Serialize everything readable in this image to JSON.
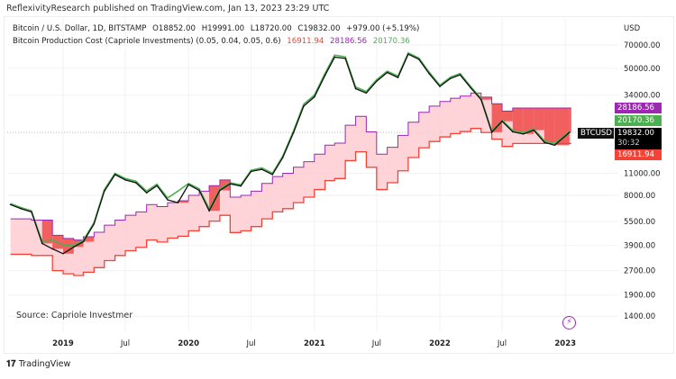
{
  "publisher_line": "ReflexivityResearch published on TradingView.com, Jan 13, 2023 23:29 UTC",
  "legend": {
    "symbol": "Bitcoin / U.S. Dollar, 1D, BITSTAMP",
    "open": "O18852.00",
    "high": "H19991.00",
    "low": "L18720.00",
    "close": "C19832.00",
    "change": "+979.00 (+5.19%)",
    "indicator": "Bitcoin Production Cost (Capriole Investments) (0.05, 0.04, 0.05, 0.6)",
    "ind_low": "16911.94",
    "ind_high": "28186.56",
    "ind_mid": "20170.36"
  },
  "source_note": "Source: Capriole Investmer",
  "brand": "TradingView",
  "price_tags": {
    "upper": "28186.56",
    "mid": "20170.36",
    "price": "19832.00",
    "countdown": "30:32",
    "lower": "16911.94",
    "symbol": "BTCUSD"
  },
  "colors": {
    "price": "#111111",
    "green": "#4caf50",
    "upper": "#9c27b0",
    "lower": "#f44336",
    "band_fill": "#ffcdd2",
    "deficit_fill": "#ef5350"
  },
  "chart_data": {
    "type": "line",
    "y_scale": "log",
    "ylabel": "USD",
    "ylim": [
      1200,
      90000
    ],
    "y_ticks": [
      70000,
      50000,
      34000,
      11000,
      8000,
      5500,
      3900,
      2700,
      1900,
      1400
    ],
    "y_tick_labels": [
      "70000.00",
      "50000.00",
      "34000.00",
      "11000.00",
      "8000.00",
      "5500.00",
      "3900.00",
      "2700.00",
      "1900.00",
      "1400.00"
    ],
    "x_ticks": [
      [
        "2019",
        "2019-01-01"
      ],
      [
        "Jul",
        "2019-07-01"
      ],
      [
        "2020",
        "2020-01-01"
      ],
      [
        "Jul",
        "2020-07-01"
      ],
      [
        "2021",
        "2021-01-01"
      ],
      [
        "Jul",
        "2021-07-01"
      ],
      [
        "2022",
        "2022-01-01"
      ],
      [
        "Jul",
        "2022-07-01"
      ],
      [
        "2023",
        "2023-01-01"
      ]
    ],
    "grid": true,
    "dates": [
      "2018-08",
      "2018-09",
      "2018-10",
      "2018-11",
      "2018-12",
      "2019-01",
      "2019-02",
      "2019-03",
      "2019-04",
      "2019-05",
      "2019-06",
      "2019-07",
      "2019-08",
      "2019-09",
      "2019-10",
      "2019-11",
      "2019-12",
      "2020-01",
      "2020-02",
      "2020-03",
      "2020-04",
      "2020-05",
      "2020-06",
      "2020-07",
      "2020-08",
      "2020-09",
      "2020-10",
      "2020-11",
      "2020-12",
      "2021-01",
      "2021-02",
      "2021-03",
      "2021-04",
      "2021-05",
      "2021-06",
      "2021-07",
      "2021-08",
      "2021-09",
      "2021-10",
      "2021-11",
      "2021-12",
      "2022-01",
      "2022-02",
      "2022-03",
      "2022-04",
      "2022-05",
      "2022-06",
      "2022-07",
      "2022-08",
      "2022-09",
      "2022-10",
      "2022-11",
      "2022-12",
      "2023-01-13"
    ],
    "series": [
      {
        "name": "BTCUSD",
        "values": [
          7000,
          6600,
          6300,
          4000,
          3700,
          3450,
          3800,
          4100,
          5300,
          8500,
          10800,
          10000,
          9600,
          8300,
          9200,
          7500,
          7200,
          9350,
          8600,
          6400,
          8600,
          9450,
          9150,
          11300,
          11650,
          10800,
          13800,
          19700,
          29000,
          33100,
          45200,
          58800,
          57700,
          37300,
          35000,
          41500,
          47100,
          43800,
          61300,
          57000,
          46300,
          38500,
          43200,
          45500,
          37700,
          31800,
          19900,
          23300,
          20000,
          19400,
          20500,
          17200,
          16500,
          19832
        ]
      },
      {
        "name": "20170.36",
        "values": [
          7100,
          6700,
          6400,
          4100,
          4200,
          3900,
          3900,
          4200,
          5400,
          8700,
          11000,
          10200,
          9800,
          8500,
          9400,
          7700,
          8500,
          9500,
          8800,
          6600,
          8800,
          9600,
          9300,
          11500,
          11900,
          11000,
          14100,
          20200,
          29800,
          34000,
          46500,
          60500,
          59000,
          38200,
          35800,
          42400,
          48000,
          44700,
          62500,
          58000,
          47300,
          39200,
          44000,
          46400,
          38400,
          32400,
          20300,
          23700,
          20400,
          19800,
          20900,
          17600,
          16900,
          20170.36
        ]
      },
      {
        "name": "28186.56",
        "values": [
          5700,
          5700,
          5600,
          5600,
          4500,
          4300,
          4200,
          4400,
          4700,
          5200,
          5600,
          6000,
          6300,
          7000,
          6800,
          7200,
          7400,
          8000,
          8500,
          9200,
          10000,
          7800,
          8000,
          8500,
          9500,
          10500,
          11000,
          12000,
          13000,
          14500,
          16500,
          17000,
          22000,
          25000,
          20000,
          14500,
          16000,
          19000,
          23000,
          26500,
          29000,
          31000,
          32500,
          33500,
          35000,
          33000,
          30000,
          27000,
          28186.56,
          28186.56,
          28186.56,
          28186.56,
          28186.56,
          28186.56
        ]
      },
      {
        "name": "16911.94",
        "values": [
          3420,
          3420,
          3360,
          3360,
          2700,
          2580,
          2520,
          2640,
          2820,
          3120,
          3360,
          3600,
          3780,
          4200,
          4080,
          4320,
          4440,
          4800,
          5100,
          5520,
          6000,
          4680,
          4800,
          5100,
          5700,
          6300,
          6600,
          7200,
          7800,
          8700,
          9900,
          10200,
          13200,
          15000,
          12000,
          8700,
          9600,
          11400,
          13800,
          15900,
          17400,
          18600,
          19500,
          20100,
          21000,
          19800,
          18000,
          16200,
          16911.94,
          16911.94,
          16911.94,
          16911.94,
          16911.94,
          16911.94
        ]
      }
    ]
  }
}
